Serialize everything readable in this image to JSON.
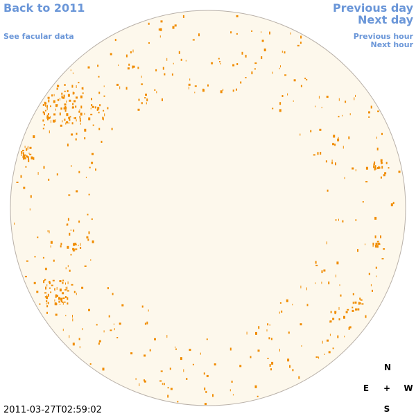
{
  "nav": {
    "back": "Back to 2011",
    "facular": "See facular data",
    "previous_day": "Previous day",
    "next_day": "Next day",
    "previous_hour": "Previous hour",
    "next_hour": "Next hour"
  },
  "timestamp": "2011-03-27T02:59:02",
  "compass": {
    "north": "N",
    "east": "E",
    "center": "+",
    "west": "W",
    "south": "S"
  }
}
